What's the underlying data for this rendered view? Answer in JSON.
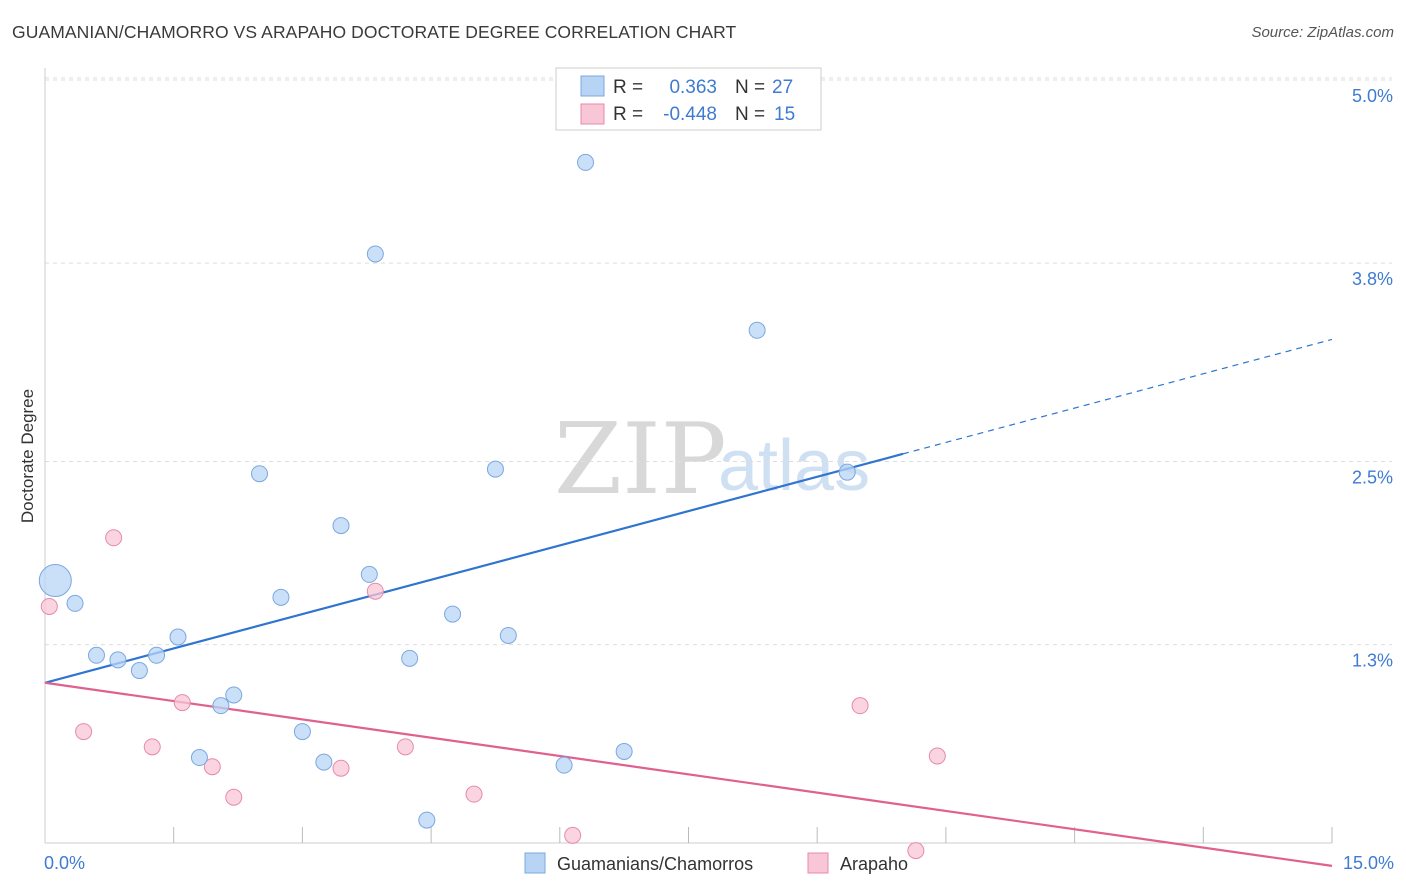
{
  "header": {
    "title": "GUAMANIAN/CHAMORRO VS ARAPAHO DOCTORATE DEGREE CORRELATION CHART",
    "source": "Source: ZipAtlas.com"
  },
  "watermark": {
    "zip": "ZIP",
    "atlas": "atlas"
  },
  "legend": {
    "series": [
      {
        "r_label": "R =",
        "r_value": "0.363",
        "n_label": "N =",
        "n_value": "27"
      },
      {
        "r_label": "R =",
        "r_value": "-0.448",
        "n_label": "N =",
        "n_value": "15"
      }
    ]
  },
  "bottom_legend": [
    "Guamanians/Chamorros",
    "Arapaho"
  ],
  "colors": {
    "blue_fill": "#b8d4f5",
    "blue_stroke": "#7aa8df",
    "blue_line": "#2f74d0",
    "pink_fill": "#f8c6d6",
    "pink_stroke": "#e88aa8",
    "pink_line": "#e0608e",
    "grid": "#dddddd",
    "tick_text": "#3f7bd2"
  },
  "chart_data": {
    "type": "scatter",
    "title": "GUAMANIAN/CHAMORRO VS ARAPAHO DOCTORATE DEGREE CORRELATION CHART",
    "xlabel": "",
    "ylabel": "Doctorate Degree",
    "xlim": [
      0,
      15
    ],
    "ylim": [
      0,
      5.0
    ],
    "x_tick_labels": [
      "0.0%",
      "15.0%"
    ],
    "y_ticks": [
      1.3,
      2.5,
      3.8,
      5.0
    ],
    "y_tick_labels": [
      "1.3%",
      "2.5%",
      "3.8%",
      "5.0%"
    ],
    "grid": true,
    "series": [
      {
        "name": "Guamanians/Chamorros",
        "color": "#b8d4f5",
        "points": [
          {
            "x": 0.12,
            "y": 1.72,
            "big": true
          },
          {
            "x": 0.35,
            "y": 1.57
          },
          {
            "x": 0.6,
            "y": 1.23
          },
          {
            "x": 0.85,
            "y": 1.2
          },
          {
            "x": 1.1,
            "y": 1.13
          },
          {
            "x": 1.3,
            "y": 1.23
          },
          {
            "x": 1.55,
            "y": 1.35
          },
          {
            "x": 1.8,
            "y": 0.56
          },
          {
            "x": 2.05,
            "y": 0.9
          },
          {
            "x": 2.2,
            "y": 0.97
          },
          {
            "x": 2.5,
            "y": 2.42
          },
          {
            "x": 2.75,
            "y": 1.61
          },
          {
            "x": 3.0,
            "y": 0.73
          },
          {
            "x": 3.25,
            "y": 0.53
          },
          {
            "x": 3.45,
            "y": 2.08
          },
          {
            "x": 3.78,
            "y": 1.76
          },
          {
            "x": 3.85,
            "y": 3.86
          },
          {
            "x": 4.25,
            "y": 1.21
          },
          {
            "x": 4.45,
            "y": 0.15
          },
          {
            "x": 4.75,
            "y": 1.5
          },
          {
            "x": 5.25,
            "y": 2.45
          },
          {
            "x": 5.4,
            "y": 1.36
          },
          {
            "x": 6.05,
            "y": 0.51
          },
          {
            "x": 6.3,
            "y": 4.46
          },
          {
            "x": 6.75,
            "y": 0.6
          },
          {
            "x": 8.3,
            "y": 3.36
          },
          {
            "x": 9.35,
            "y": 2.43
          }
        ],
        "trend": {
          "x0": 0,
          "y0": 1.05,
          "x1": 10.0,
          "y1": 2.55,
          "dash_to_x": 15.0,
          "dash_to_y": 3.3
        }
      },
      {
        "name": "Arapaho",
        "color": "#f8c6d6",
        "points": [
          {
            "x": 0.05,
            "y": 1.55
          },
          {
            "x": 0.45,
            "y": 0.73
          },
          {
            "x": 0.8,
            "y": 2.0
          },
          {
            "x": 1.25,
            "y": 0.63
          },
          {
            "x": 1.6,
            "y": 0.92
          },
          {
            "x": 1.95,
            "y": 0.5
          },
          {
            "x": 2.2,
            "y": 0.3
          },
          {
            "x": 3.45,
            "y": 0.49
          },
          {
            "x": 3.85,
            "y": 1.65
          },
          {
            "x": 4.2,
            "y": 0.63
          },
          {
            "x": 5.0,
            "y": 0.32
          },
          {
            "x": 6.15,
            "y": 0.05
          },
          {
            "x": 9.5,
            "y": 0.9
          },
          {
            "x": 10.15,
            "y": -0.05
          },
          {
            "x": 10.4,
            "y": 0.57
          }
        ],
        "trend": {
          "x0": 0,
          "y0": 1.05,
          "x1": 15.0,
          "y1": -0.15
        }
      }
    ]
  }
}
